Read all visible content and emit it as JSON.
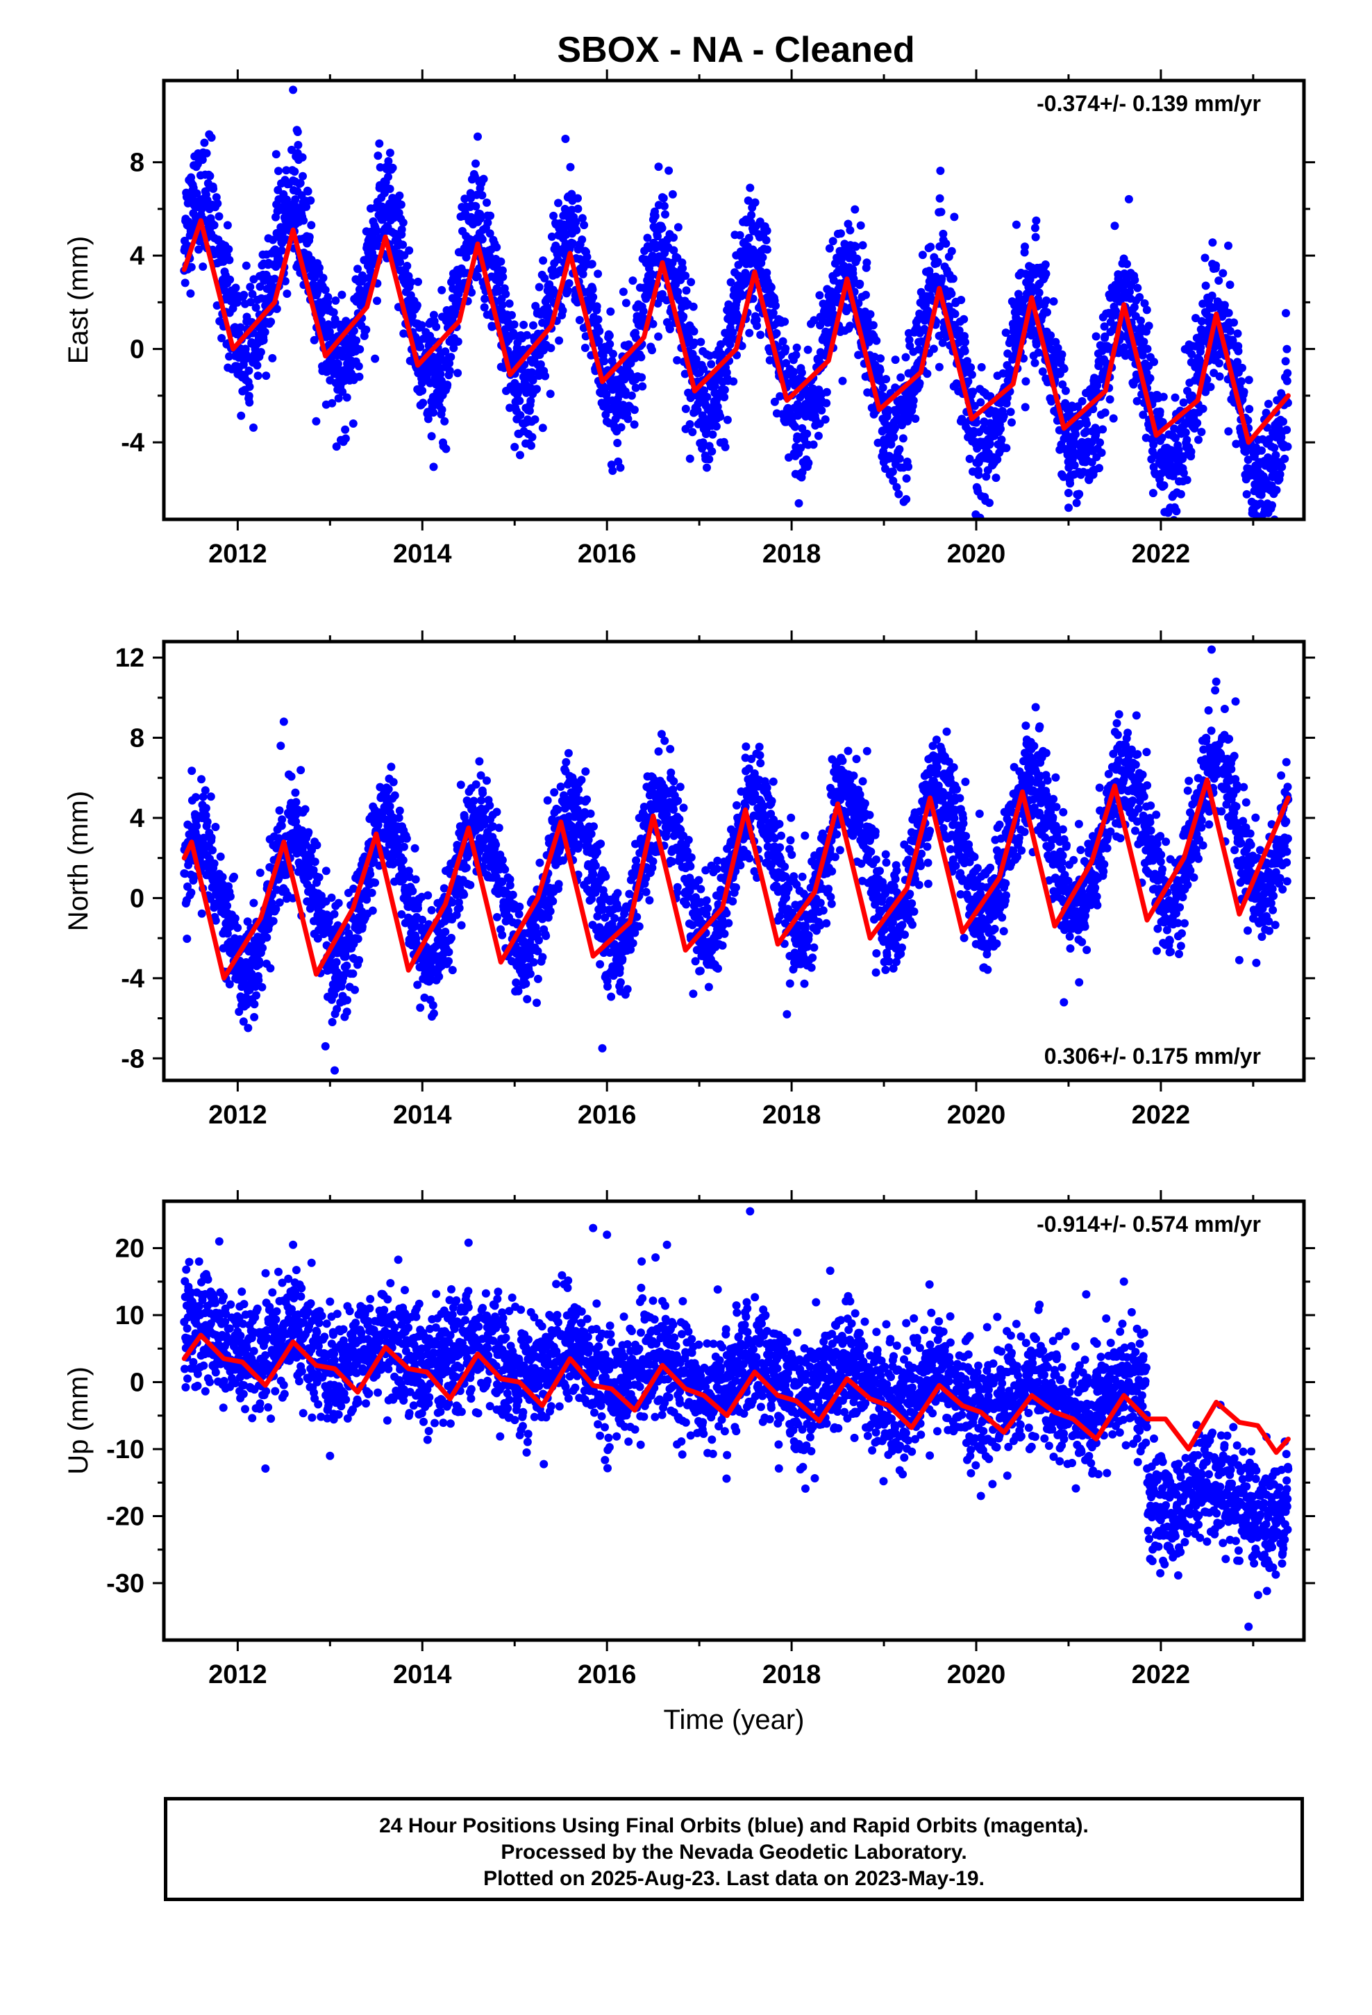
{
  "title": "SBOX  - NA - Cleaned",
  "xlabel": "Time (year)",
  "footer": [
    "24 Hour Positions Using Final Orbits (blue) and Rapid Orbits (magenta).",
    "Processed by the Nevada Geodetic Laboratory.",
    "Plotted on 2025-Aug-23. Last data on 2023-May-19."
  ],
  "colors": {
    "points": "#0000ff",
    "model": "#ff0000",
    "axes": "#000000"
  },
  "chart_data": [
    {
      "type": "scatter",
      "ylabel": "East (mm)",
      "rate_label": "-0.374+/- 0.139 mm/yr",
      "rate_position": "top-right",
      "xlim": [
        2011.2,
        2023.55
      ],
      "ylim": [
        -7.3,
        11.5
      ],
      "xticks": [
        2012,
        2014,
        2016,
        2018,
        2020,
        2022
      ],
      "yticks": [
        -4,
        0,
        4,
        8
      ],
      "grid": false,
      "series": [
        {
          "style": "scatter",
          "params": {
            "offset": 3.3,
            "amp": 3.3,
            "decline": 0.48,
            "noise": 1.3,
            "start": 2011.42,
            "end": 2023.38,
            "break": null
          },
          "points": [
            [
              2012.6,
              11.1
            ],
            [
              2012.65,
              9.3
            ],
            [
              2014.6,
              9.1
            ],
            [
              2015.55,
              9.0
            ],
            [
              2016.6,
              6.5
            ],
            [
              2020.65,
              5.5
            ],
            [
              2020.1,
              -6.5
            ],
            [
              2021.0,
              -6.8
            ],
            [
              2012.85,
              -3.1
            ],
            [
              2015.0,
              -4.2
            ],
            [
              2016.9,
              -4.7
            ]
          ]
        },
        {
          "style": "line",
          "x": [
            2011.42,
            2011.6,
            2011.95,
            2012.4,
            2012.6,
            2012.95,
            2013.4,
            2013.6,
            2013.95,
            2014.4,
            2014.6,
            2014.95,
            2015.4,
            2015.6,
            2015.95,
            2016.4,
            2016.6,
            2016.95,
            2017.4,
            2017.6,
            2017.95,
            2018.4,
            2018.6,
            2018.95,
            2019.4,
            2019.6,
            2019.95,
            2020.4,
            2020.6,
            2020.95,
            2021.4,
            2021.6,
            2021.95,
            2022.4,
            2022.6,
            2022.95,
            2023.38
          ],
          "y": [
            3.4,
            5.5,
            0.0,
            2.0,
            5.1,
            -0.3,
            1.8,
            4.8,
            -0.7,
            1.2,
            4.5,
            -1.1,
            1.0,
            4.1,
            -1.4,
            0.5,
            3.7,
            -1.8,
            0.0,
            3.3,
            -2.2,
            -0.5,
            3.0,
            -2.6,
            -1.0,
            2.6,
            -3.0,
            -1.5,
            2.2,
            -3.4,
            -1.8,
            1.9,
            -3.7,
            -2.2,
            1.5,
            -4.0,
            -2.0
          ]
        }
      ]
    },
    {
      "type": "scatter",
      "ylabel": "North (mm)",
      "rate_label": "0.306+/- 0.175 mm/yr",
      "rate_position": "bottom-right",
      "xlim": [
        2011.2,
        2023.55
      ],
      "ylim": [
        -9.1,
        12.8
      ],
      "xticks": [
        2012,
        2014,
        2016,
        2018,
        2020,
        2022
      ],
      "yticks": [
        -8,
        -4,
        0,
        4,
        8,
        12
      ],
      "grid": false,
      "series": [
        {
          "style": "scatter",
          "params": {
            "offset": -0.6,
            "amp": 3.4,
            "decline": -0.35,
            "noise": 1.3,
            "start": 2011.42,
            "end": 2023.38,
            "break": null
          },
          "points": [
            [
              2022.55,
              12.4
            ],
            [
              2022.6,
              10.8
            ],
            [
              2012.5,
              8.8
            ],
            [
              2017.5,
              7.0
            ],
            [
              2013.05,
              -8.6
            ],
            [
              2015.95,
              -7.5
            ],
            [
              2012.95,
              -7.4
            ],
            [
              2013.55,
              5.0
            ],
            [
              2016.35,
              4.0
            ],
            [
              2022.85,
              -3.1
            ],
            [
              2017.95,
              -5.8
            ],
            [
              2020.95,
              -5.2
            ]
          ]
        },
        {
          "style": "line",
          "x": [
            2011.42,
            2011.5,
            2011.85,
            2012.25,
            2012.5,
            2012.85,
            2013.25,
            2013.5,
            2013.85,
            2014.25,
            2014.5,
            2014.85,
            2015.25,
            2015.5,
            2015.85,
            2016.25,
            2016.5,
            2016.85,
            2017.25,
            2017.5,
            2017.85,
            2018.25,
            2018.5,
            2018.85,
            2019.25,
            2019.5,
            2019.85,
            2020.25,
            2020.5,
            2020.85,
            2021.25,
            2021.5,
            2021.85,
            2022.25,
            2022.5,
            2022.85,
            2023.38
          ],
          "y": [
            2.0,
            2.8,
            -4.0,
            -1.0,
            2.8,
            -3.8,
            -0.5,
            3.2,
            -3.6,
            -0.3,
            3.5,
            -3.2,
            0.0,
            3.8,
            -2.9,
            -1.2,
            4.1,
            -2.6,
            -0.5,
            4.4,
            -2.3,
            0.3,
            4.7,
            -2.0,
            0.5,
            5.0,
            -1.7,
            1.0,
            5.3,
            -1.4,
            1.8,
            5.6,
            -1.1,
            2.0,
            5.9,
            -0.8,
            5.0
          ]
        }
      ]
    },
    {
      "type": "scatter",
      "ylabel": "Up (mm)",
      "rate_label": "-0.914+/- 0.574 mm/yr",
      "rate_position": "top-right",
      "xlim": [
        2011.2,
        2023.55
      ],
      "ylim": [
        -38.5,
        27.0
      ],
      "xticks": [
        2012,
        2014,
        2016,
        2018,
        2020,
        2022
      ],
      "yticks": [
        -30,
        -20,
        -10,
        0,
        10,
        20
      ],
      "grid": false,
      "series": [
        {
          "style": "scatter",
          "params": {
            "offset": 6.0,
            "amp": 2.5,
            "decline": 0.9,
            "noise": 4.2,
            "start": 2011.42,
            "end": 2023.38,
            "break": 2021.85,
            "break_offset": -13.5
          },
          "points": [
            [
              2017.55,
              25.5
            ],
            [
              2015.85,
              23.0
            ],
            [
              2011.8,
              21.0
            ],
            [
              2016.0,
              22.0
            ],
            [
              2012.6,
              20.5
            ],
            [
              2014.5,
              20.8
            ],
            [
              2016.65,
              20.5
            ],
            [
              2012.3,
              -12.9
            ],
            [
              2013.0,
              -11.0
            ],
            [
              2018.15,
              -15.9
            ],
            [
              2020.05,
              -17.0
            ],
            [
              2022.95,
              -36.5
            ],
            [
              2021.6,
              15.0
            ]
          ]
        },
        {
          "style": "line",
          "x": [
            2011.42,
            2011.6,
            2011.85,
            2012.05,
            2012.3,
            2012.6,
            2012.85,
            2013.05,
            2013.3,
            2013.6,
            2013.85,
            2014.05,
            2014.3,
            2014.6,
            2014.85,
            2015.05,
            2015.3,
            2015.6,
            2015.85,
            2016.05,
            2016.3,
            2016.6,
            2016.85,
            2017.05,
            2017.3,
            2017.6,
            2017.85,
            2018.05,
            2018.3,
            2018.6,
            2018.85,
            2019.05,
            2019.3,
            2019.6,
            2019.85,
            2020.05,
            2020.3,
            2020.6,
            2020.85,
            2021.05,
            2021.3,
            2021.6,
            2021.85,
            2022.05,
            2022.3,
            2022.6,
            2022.85,
            2023.05,
            2023.25,
            2023.38
          ],
          "y": [
            3.5,
            7.0,
            3.5,
            3.0,
            -0.5,
            6.0,
            2.5,
            2.0,
            -1.5,
            5.2,
            2.0,
            1.5,
            -2.5,
            4.2,
            0.5,
            0.0,
            -3.5,
            3.5,
            -0.5,
            -1.0,
            -4.2,
            2.5,
            -1.0,
            -2.0,
            -5.0,
            1.5,
            -2.0,
            -2.8,
            -5.8,
            0.5,
            -2.5,
            -3.5,
            -6.8,
            -0.5,
            -3.5,
            -4.5,
            -7.5,
            -2.0,
            -4.5,
            -5.5,
            -8.5,
            -2.0,
            -5.5,
            -5.5,
            -10.0,
            -3.0,
            -6.0,
            -6.5,
            -10.5,
            -8.5
          ]
        }
      ]
    }
  ]
}
